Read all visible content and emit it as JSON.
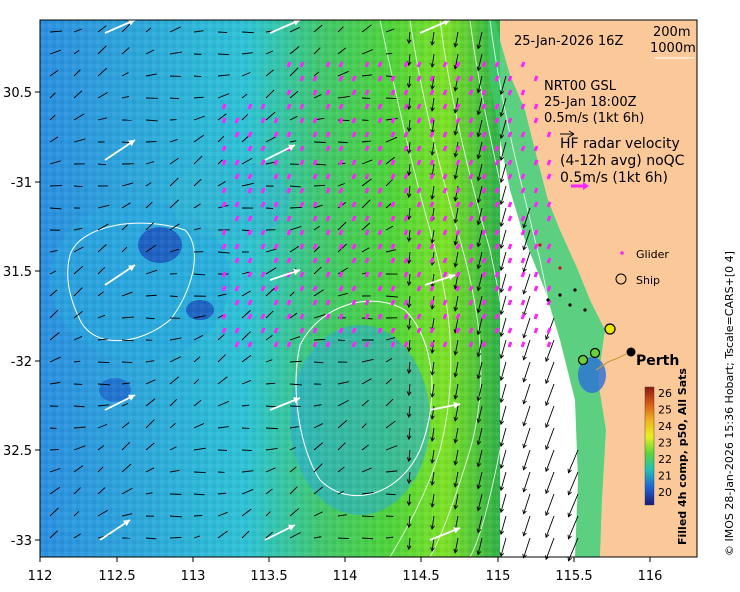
{
  "map": {
    "lon_ticks": [
      "112",
      "112.5",
      "113",
      "113.5",
      "114",
      "114.5",
      "115",
      "115.5",
      "116"
    ],
    "lat_ticks": [
      "30.5",
      "-31",
      "31.5",
      "-32",
      "32.5",
      "-33"
    ],
    "extent": {
      "lon_min": 112.0,
      "lon_max": 116.25,
      "lat_min": -33.1,
      "lat_max": -30.2
    }
  },
  "header": {
    "datetime": "25-Jan-2026 16Z",
    "isobath_200": "200m",
    "isobath_1000": "1000m"
  },
  "model_legend": {
    "line1": "NRT00 GSL",
    "line2": "25-Jan 18:00Z",
    "line3": "0.5m/s (1kt 6h)"
  },
  "radar_legend": {
    "line1": "HF radar velocity",
    "line2": "(4-12h avg) noQC",
    "line3": "0.5m/s (1kt 6h)"
  },
  "platform_legend": {
    "glider_label": "Glider",
    "ship_label": "Ship"
  },
  "place_labels": {
    "city": "Perth"
  },
  "colorbar": {
    "ticks": [
      "26",
      "25",
      "24",
      "23",
      "22",
      "21",
      "20"
    ],
    "title": "Filled 4h comp, p50, All Sats"
  },
  "credit": "© IMOS 28-Jan-2026 15:36 Hobart; Tscale=CARS+[0 4]",
  "colors": {
    "land": "#fbc89a",
    "radar_arrow": "#ff22ff",
    "eddy_arrow": "#ffffff",
    "current_arrow": "#000000"
  }
}
